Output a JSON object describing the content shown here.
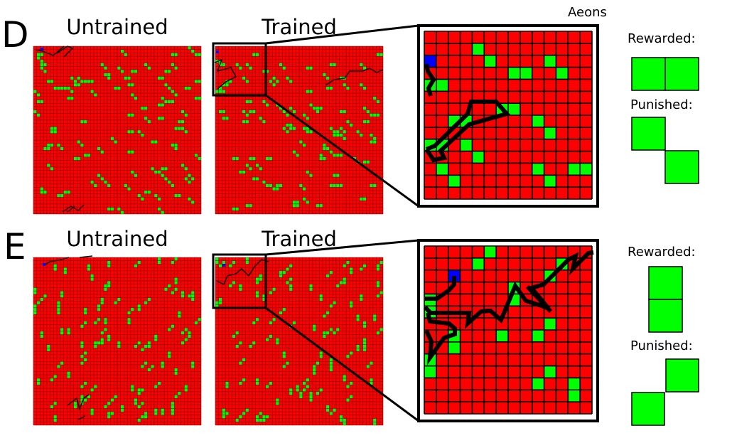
{
  "figure": {
    "aeons_label": "Aeons",
    "colors": {
      "cell": "#ff0000",
      "food": "#00ff00",
      "agent": "#0000ff",
      "grid_line": "#000000",
      "path": "#000000"
    },
    "panels": [
      {
        "letter": "D",
        "untrained_label": "Untrained",
        "trained_label": "Trained",
        "legend": {
          "rewarded_label": "Rewarded:",
          "punished_label": "Punished:",
          "rewarded_shape": "horizontal-pair",
          "punished_shape": "diagonal-down-right"
        },
        "zoom_grid": {
          "size": 14,
          "agent": [
            2,
            0
          ],
          "food": [
            [
              1,
              4
            ],
            [
              2,
              5
            ],
            [
              2,
              10
            ],
            [
              3,
              7
            ],
            [
              3,
              8
            ],
            [
              3,
              11
            ],
            [
              4,
              0
            ],
            [
              4,
              1
            ],
            [
              6,
              6
            ],
            [
              6,
              7
            ],
            [
              7,
              2
            ],
            [
              7,
              3
            ],
            [
              7,
              9
            ],
            [
              8,
              10
            ],
            [
              9,
              0
            ],
            [
              9,
              1
            ],
            [
              9,
              3
            ],
            [
              10,
              4
            ],
            [
              11,
              1
            ],
            [
              11,
              9
            ],
            [
              11,
              12
            ],
            [
              11,
              13
            ],
            [
              12,
              2
            ],
            [
              12,
              10
            ]
          ]
        }
      },
      {
        "letter": "E",
        "untrained_label": "Untrained",
        "trained_label": "Trained",
        "legend": {
          "rewarded_label": "Rewarded:",
          "punished_label": "Punished:",
          "rewarded_shape": "vertical-pair",
          "punished_shape": "diagonal-up-right"
        },
        "zoom_grid": {
          "size": 14,
          "agent": [
            2,
            2
          ],
          "food": [
            [
              0,
              5
            ],
            [
              1,
              4
            ],
            [
              1,
              11
            ],
            [
              2,
              10
            ],
            [
              3,
              7
            ],
            [
              4,
              0
            ],
            [
              4,
              7
            ],
            [
              5,
              0
            ],
            [
              6,
              10
            ],
            [
              7,
              2
            ],
            [
              7,
              6
            ],
            [
              7,
              9
            ],
            [
              8,
              2
            ],
            [
              9,
              0
            ],
            [
              10,
              0
            ],
            [
              10,
              10
            ],
            [
              11,
              9
            ],
            [
              11,
              12
            ],
            [
              12,
              12
            ]
          ]
        }
      }
    ]
  }
}
